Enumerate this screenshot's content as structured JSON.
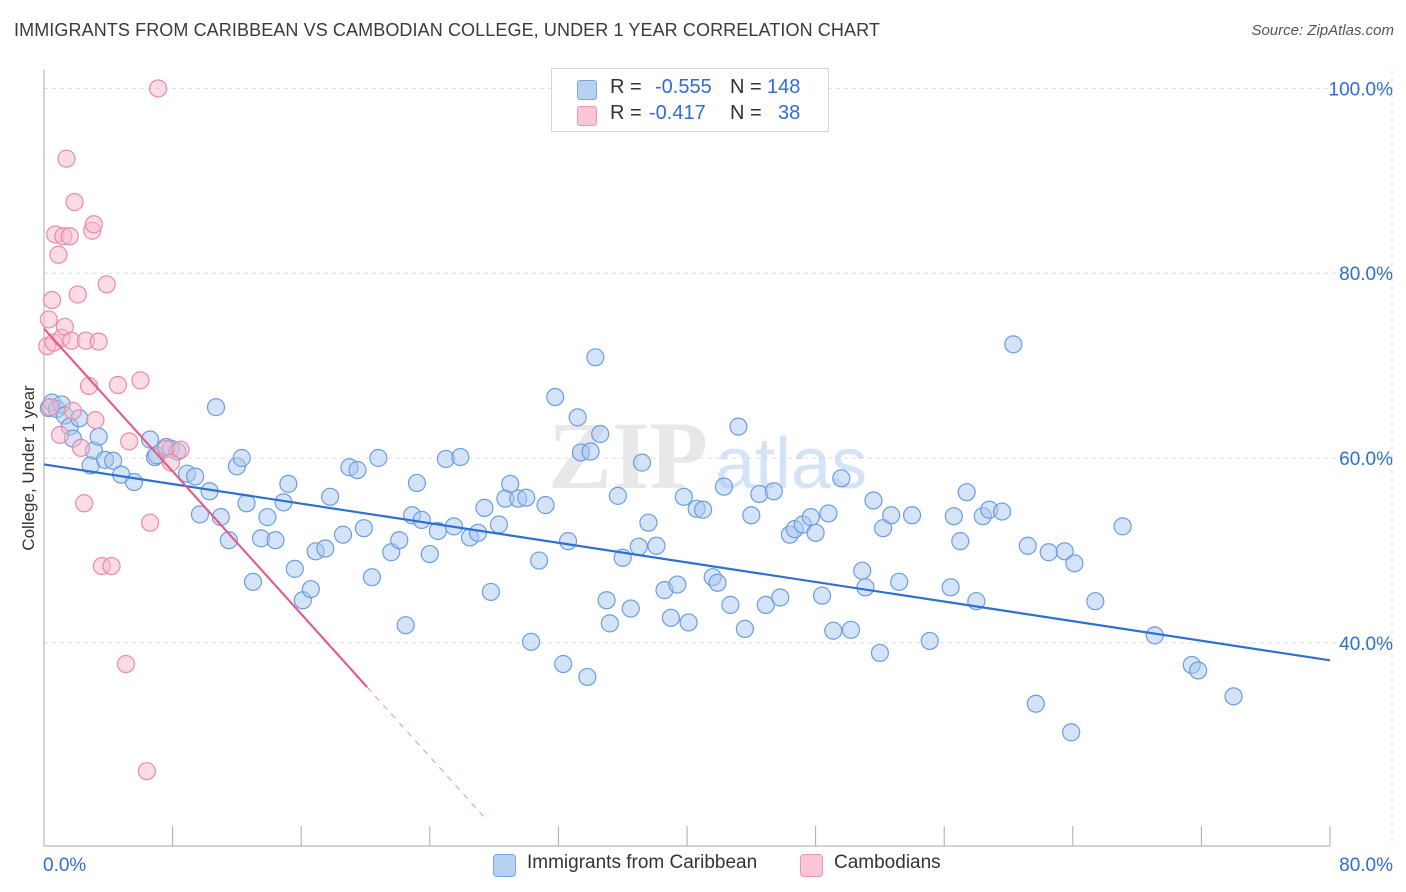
{
  "title": "IMMIGRANTS FROM CARIBBEAN VS CAMBODIAN COLLEGE, UNDER 1 YEAR CORRELATION CHART",
  "source": "Source: ZipAtlas.com",
  "watermark": {
    "zip": "ZIP",
    "atlas": "atlas"
  },
  "legend": {
    "r_label": "R =",
    "n_label": "N =",
    "series": [
      {
        "name": "Immigrants from Caribbean",
        "r": "-0.555",
        "n": "148",
        "fill": "#a9c7f0",
        "stroke": "#6a9ee0"
      },
      {
        "name": "Cambodians",
        "r": "-0.417",
        "n": "38",
        "fill": "#f7b9cc",
        "stroke": "#e98aa8"
      }
    ]
  },
  "colors": {
    "blue_line": "#2f6fd0",
    "pink_line": "#e0608a",
    "axis_text": "#2f6fd0",
    "grid": "#dddddd"
  },
  "chart_data": {
    "type": "scatter",
    "title": "IMMIGRANTS FROM CARIBBEAN VS CAMBODIAN COLLEGE, UNDER 1 YEAR CORRELATION CHART",
    "xlabel": "",
    "ylabel": "College, Under 1 year",
    "xlim": [
      0,
      80
    ],
    "ylim": [
      18,
      102
    ],
    "x_tick_labels": [
      {
        "value": 0,
        "label": "0.0%"
      },
      {
        "value": 80,
        "label": "80.0%"
      }
    ],
    "y_tick_labels": [
      {
        "value": 40,
        "label": "40.0%"
      },
      {
        "value": 60,
        "label": "60.0%"
      },
      {
        "value": 80,
        "label": "80.0%"
      },
      {
        "value": 100,
        "label": "100.0%"
      }
    ],
    "grid": true,
    "legend_position": "top-center",
    "series": [
      {
        "name": "Immigrants from Caribbean",
        "r": -0.555,
        "n": 148,
        "trend": {
          "x": [
            0,
            80
          ],
          "y": [
            59.3,
            38.1
          ]
        },
        "points": [
          [
            0.3,
            65.4
          ],
          [
            0.5,
            66
          ],
          [
            0.8,
            65.3
          ],
          [
            1.1,
            65.8
          ],
          [
            1.3,
            64.6
          ],
          [
            1.6,
            63.4
          ],
          [
            1.8,
            62.1
          ],
          [
            2.2,
            64.3
          ],
          [
            2.9,
            59.2
          ],
          [
            3.1,
            60.8
          ],
          [
            3.4,
            62.3
          ],
          [
            3.8,
            59.8
          ],
          [
            4.3,
            59.7
          ],
          [
            4.8,
            58.2
          ],
          [
            5.6,
            57.4
          ],
          [
            6.6,
            62
          ],
          [
            6.9,
            60.1
          ],
          [
            7.0,
            60.3
          ],
          [
            7.6,
            61.2
          ],
          [
            7.9,
            61
          ],
          [
            8.3,
            60.7
          ],
          [
            8.9,
            58.3
          ],
          [
            9.4,
            58
          ],
          [
            9.7,
            53.9
          ],
          [
            10.3,
            56.4
          ],
          [
            10.7,
            65.5
          ],
          [
            11.0,
            53.6
          ],
          [
            11.5,
            51.1
          ],
          [
            12.0,
            59.1
          ],
          [
            12.3,
            60
          ],
          [
            12.6,
            55.1
          ],
          [
            13.0,
            46.6
          ],
          [
            13.5,
            51.3
          ],
          [
            13.9,
            53.6
          ],
          [
            14.4,
            51.1
          ],
          [
            14.9,
            55.2
          ],
          [
            15.2,
            57.2
          ],
          [
            15.6,
            48
          ],
          [
            16.1,
            44.6
          ],
          [
            16.6,
            45.8
          ],
          [
            16.9,
            49.9
          ],
          [
            17.5,
            50.2
          ],
          [
            17.8,
            55.8
          ],
          [
            18.6,
            51.7
          ],
          [
            19.0,
            59
          ],
          [
            19.5,
            58.7
          ],
          [
            19.9,
            52.4
          ],
          [
            20.4,
            47.1
          ],
          [
            20.8,
            60
          ],
          [
            21.6,
            49.8
          ],
          [
            22.1,
            51.1
          ],
          [
            22.5,
            41.9
          ],
          [
            22.9,
            53.8
          ],
          [
            23.2,
            57.3
          ],
          [
            23.5,
            53.3
          ],
          [
            24.0,
            49.6
          ],
          [
            24.5,
            52.1
          ],
          [
            25.0,
            59.9
          ],
          [
            25.5,
            52.6
          ],
          [
            25.9,
            60.1
          ],
          [
            26.5,
            51.4
          ],
          [
            27.0,
            51.9
          ],
          [
            27.4,
            54.6
          ],
          [
            27.8,
            45.5
          ],
          [
            28.3,
            52.8
          ],
          [
            28.7,
            55.6
          ],
          [
            29.0,
            57.2
          ],
          [
            29.5,
            55.6
          ],
          [
            30.0,
            55.7
          ],
          [
            30.3,
            40.1
          ],
          [
            30.8,
            48.9
          ],
          [
            31.2,
            54.9
          ],
          [
            31.8,
            66.6
          ],
          [
            32.3,
            37.7
          ],
          [
            32.6,
            51
          ],
          [
            33.2,
            64.4
          ],
          [
            33.4,
            60.6
          ],
          [
            33.8,
            36.3
          ],
          [
            34.3,
            70.9
          ],
          [
            34.6,
            62.6
          ],
          [
            35.0,
            44.6
          ],
          [
            35.2,
            42.1
          ],
          [
            35.7,
            55.9
          ],
          [
            36.0,
            49.2
          ],
          [
            36.5,
            43.7
          ],
          [
            37.0,
            50.4
          ],
          [
            37.2,
            59.5
          ],
          [
            37.6,
            53
          ],
          [
            38.1,
            50.5
          ],
          [
            38.6,
            45.7
          ],
          [
            39.0,
            42.7
          ],
          [
            39.4,
            46.3
          ],
          [
            39.8,
            55.8
          ],
          [
            40.1,
            42.2
          ],
          [
            40.6,
            54.5
          ],
          [
            41.0,
            54.4
          ],
          [
            41.6,
            47.1
          ],
          [
            41.9,
            46.5
          ],
          [
            42.3,
            56.9
          ],
          [
            42.7,
            44.1
          ],
          [
            43.2,
            63.4
          ],
          [
            43.6,
            41.5
          ],
          [
            44.0,
            53.8
          ],
          [
            44.5,
            56.1
          ],
          [
            44.9,
            44.1
          ],
          [
            45.4,
            56.4
          ],
          [
            45.8,
            44.9
          ],
          [
            46.4,
            51.7
          ],
          [
            46.7,
            52.3
          ],
          [
            47.2,
            52.8
          ],
          [
            47.7,
            53.6
          ],
          [
            48.0,
            51.9
          ],
          [
            48.4,
            45.1
          ],
          [
            48.8,
            54
          ],
          [
            49.1,
            41.3
          ],
          [
            49.6,
            57.8
          ],
          [
            50.2,
            41.4
          ],
          [
            50.9,
            47.8
          ],
          [
            51.1,
            46
          ],
          [
            51.6,
            55.4
          ],
          [
            52.0,
            38.9
          ],
          [
            52.2,
            52.4
          ],
          [
            52.7,
            53.8
          ],
          [
            53.2,
            46.6
          ],
          [
            54.0,
            53.8
          ],
          [
            55.1,
            40.2
          ],
          [
            56.4,
            46
          ],
          [
            56.6,
            53.7
          ],
          [
            57.0,
            51
          ],
          [
            57.4,
            56.3
          ],
          [
            58.0,
            44.5
          ],
          [
            58.4,
            53.7
          ],
          [
            58.8,
            54.4
          ],
          [
            59.6,
            54.2
          ],
          [
            60.3,
            72.3
          ],
          [
            61.2,
            50.5
          ],
          [
            61.7,
            33.4
          ],
          [
            62.5,
            49.8
          ],
          [
            63.5,
            49.9
          ],
          [
            63.9,
            30.3
          ],
          [
            64.1,
            48.6
          ],
          [
            65.4,
            44.5
          ],
          [
            67.1,
            52.6
          ],
          [
            69.1,
            40.8
          ],
          [
            71.4,
            37.6
          ],
          [
            71.8,
            37
          ],
          [
            74.0,
            34.2
          ],
          [
            34.0,
            60.7
          ]
        ]
      },
      {
        "name": "Cambodians",
        "r": -0.417,
        "n": 38,
        "trend": {
          "x": [
            0,
            20.1
          ],
          "y": [
            74,
            35.2
          ]
        },
        "trend_dashed": {
          "x": [
            20.1,
            27.5
          ],
          "y": [
            35.2,
            20.9
          ]
        },
        "points": [
          [
            0.2,
            72.1
          ],
          [
            0.3,
            75
          ],
          [
            0.5,
            77.1
          ],
          [
            0.6,
            72.5
          ],
          [
            0.7,
            84.2
          ],
          [
            0.9,
            82
          ],
          [
            1.1,
            73
          ],
          [
            1.2,
            84
          ],
          [
            1.3,
            74.2
          ],
          [
            1.4,
            92.4
          ],
          [
            1.6,
            84
          ],
          [
            1.7,
            72.7
          ],
          [
            1.8,
            65.1
          ],
          [
            1.9,
            87.7
          ],
          [
            2.1,
            77.7
          ],
          [
            2.3,
            61.1
          ],
          [
            2.5,
            55.1
          ],
          [
            2.6,
            72.7
          ],
          [
            2.8,
            67.8
          ],
          [
            3.0,
            84.6
          ],
          [
            3.1,
            85.3
          ],
          [
            3.2,
            64.1
          ],
          [
            3.4,
            72.6
          ],
          [
            3.6,
            48.3
          ],
          [
            3.9,
            78.8
          ],
          [
            4.2,
            48.3
          ],
          [
            4.6,
            67.9
          ],
          [
            5.1,
            37.7
          ],
          [
            5.3,
            61.8
          ],
          [
            6.0,
            68.4
          ],
          [
            6.4,
            26.1
          ],
          [
            6.6,
            53
          ],
          [
            7.1,
            100
          ],
          [
            7.6,
            61
          ],
          [
            7.9,
            59.5
          ],
          [
            8.5,
            60.9
          ],
          [
            0.4,
            65.5
          ],
          [
            1.0,
            62.5
          ]
        ]
      }
    ]
  }
}
